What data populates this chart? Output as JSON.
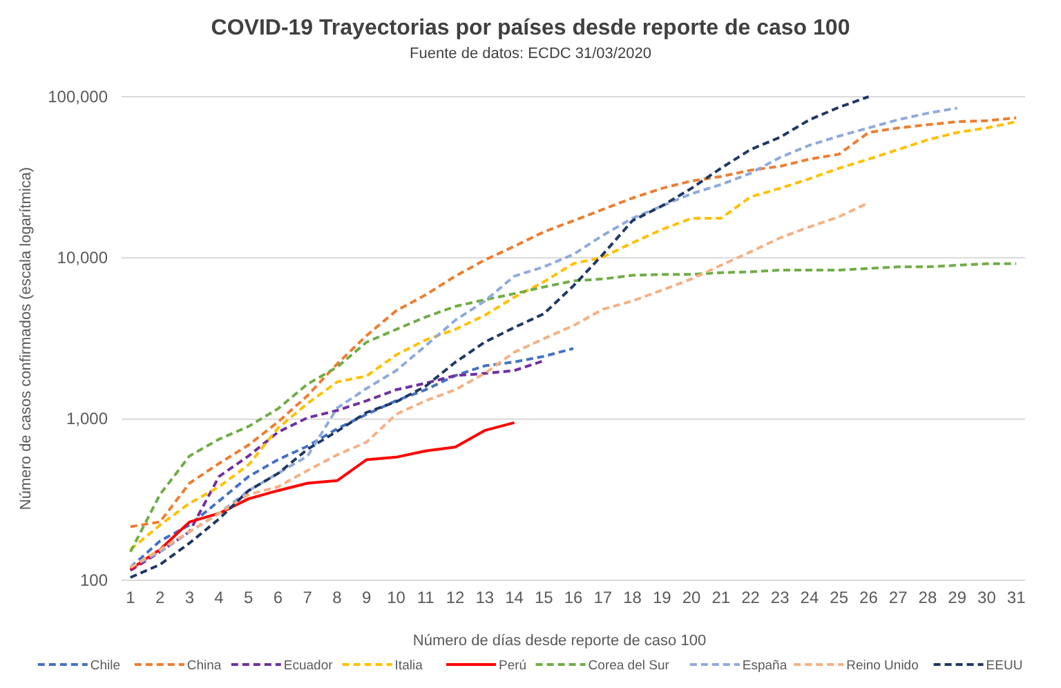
{
  "chart_data": {
    "type": "line",
    "title": "COVID-19 Trayectorias por países desde reporte de caso 100",
    "subtitle": "Fuente de datos: ECDC  31/03/2020",
    "xlabel": "Número de días desde reporte de caso 100",
    "ylabel": "Número de casos confirmados (escala logarítmica)",
    "x": [
      1,
      2,
      3,
      4,
      5,
      6,
      7,
      8,
      9,
      10,
      11,
      12,
      13,
      14,
      15,
      16,
      17,
      18,
      19,
      20,
      21,
      22,
      23,
      24,
      25,
      26,
      27,
      28,
      29,
      30,
      31
    ],
    "xlim": [
      0.7,
      31.3
    ],
    "xticks": [
      1,
      2,
      3,
      4,
      5,
      6,
      7,
      8,
      9,
      10,
      11,
      12,
      13,
      14,
      15,
      16,
      17,
      18,
      19,
      20,
      21,
      22,
      23,
      24,
      25,
      26,
      27,
      28,
      29,
      30,
      31
    ],
    "ylim": [
      100,
      100000
    ],
    "yticks": [
      100,
      {
        "value": 1000,
        "label": "1,000"
      },
      {
        "value": 10000,
        "label": "10,000"
      },
      {
        "value": 100000,
        "label": "100,000"
      }
    ],
    "log": true,
    "grid": "y",
    "legend": "bottom",
    "marker": "none",
    "series": [
      {
        "name": "Chile",
        "color": "#4472c4",
        "line_style": "dashed",
        "values": [
          120,
          175,
          220,
          310,
          440,
          560,
          680,
          870,
          1070,
          1300,
          1520,
          1860,
          2140,
          2260,
          2450,
          2740,
          null,
          null,
          null,
          null,
          null,
          null,
          null,
          null,
          null,
          null,
          null,
          null,
          null,
          null,
          null
        ]
      },
      {
        "name": "China",
        "color": "#ed7d31",
        "line_style": "dashed",
        "values": [
          215,
          230,
          400,
          530,
          690,
          960,
          1400,
          2200,
          3300,
          4700,
          5900,
          7700,
          9700,
          11800,
          14500,
          17000,
          20000,
          23500,
          27000,
          30000,
          32000,
          35000,
          37000,
          41000,
          44000,
          60000,
          64000,
          67000,
          70000,
          71000,
          74000
        ]
      },
      {
        "name": "Ecuador",
        "color": "#7030a0",
        "line_style": "dashed",
        "values": [
          115,
          150,
          200,
          440,
          590,
          830,
          1020,
          1130,
          1300,
          1520,
          1670,
          1860,
          1920,
          2000,
          2300,
          null,
          null,
          null,
          null,
          null,
          null,
          null,
          null,
          null,
          null,
          null,
          null,
          null,
          null,
          null,
          null
        ]
      },
      {
        "name": "Italia",
        "color": "#ffc000",
        "line_style": "dashed",
        "values": [
          155,
          220,
          300,
          380,
          520,
          880,
          1250,
          1700,
          1850,
          2500,
          3100,
          3600,
          4400,
          5700,
          7100,
          9200,
          10100,
          12400,
          15000,
          17600,
          17600,
          23900,
          27000,
          31000,
          36000,
          41000,
          47000,
          54000,
          60000,
          64000,
          70000
        ]
      },
      {
        "name": "Perú",
        "color": "#ff0000",
        "line_style": "solid",
        "values": [
          117,
          155,
          230,
          260,
          320,
          360,
          400,
          415,
          560,
          580,
          635,
          670,
          850,
          950,
          null,
          null,
          null,
          null,
          null,
          null,
          null,
          null,
          null,
          null,
          null,
          null,
          null,
          null,
          null,
          null,
          null
        ]
      },
      {
        "name": "Corea del Sur",
        "color": "#70ad47",
        "line_style": "dashed",
        "values": [
          150,
          340,
          590,
          750,
          900,
          1160,
          1650,
          2100,
          3000,
          3600,
          4300,
          5000,
          5500,
          6000,
          6600,
          7200,
          7400,
          7800,
          7900,
          7900,
          8100,
          8200,
          8400,
          8400,
          8400,
          8600,
          8800,
          8800,
          9000,
          9200,
          9200
        ]
      },
      {
        "name": "España",
        "color": "#8faadc",
        "line_style": "dashed",
        "values": [
          120,
          150,
          200,
          260,
          360,
          460,
          590,
          1170,
          1550,
          2000,
          2850,
          4100,
          5400,
          7700,
          8800,
          10500,
          13800,
          17600,
          21000,
          25000,
          28500,
          33500,
          42000,
          50000,
          57000,
          64000,
          72000,
          79000,
          85000,
          null,
          null
        ]
      },
      {
        "name": "Reino Unido",
        "color": "#f4b183",
        "line_style": "dashed",
        "values": [
          120,
          155,
          200,
          260,
          340,
          380,
          480,
          600,
          720,
          1070,
          1300,
          1520,
          1920,
          2600,
          3150,
          3800,
          4800,
          5400,
          6300,
          7400,
          9000,
          10900,
          13300,
          15600,
          18000,
          22000,
          null,
          null,
          null,
          null,
          null
        ]
      },
      {
        "name": "EEUU",
        "color": "#1f3864",
        "line_style": "dashed",
        "values": [
          104,
          125,
          170,
          240,
          360,
          460,
          650,
          840,
          1100,
          1280,
          1600,
          2250,
          3000,
          3700,
          4500,
          6700,
          10500,
          17000,
          21000,
          27000,
          36000,
          47000,
          56000,
          72000,
          86000,
          100000,
          null,
          null,
          null,
          null,
          null
        ]
      }
    ]
  }
}
